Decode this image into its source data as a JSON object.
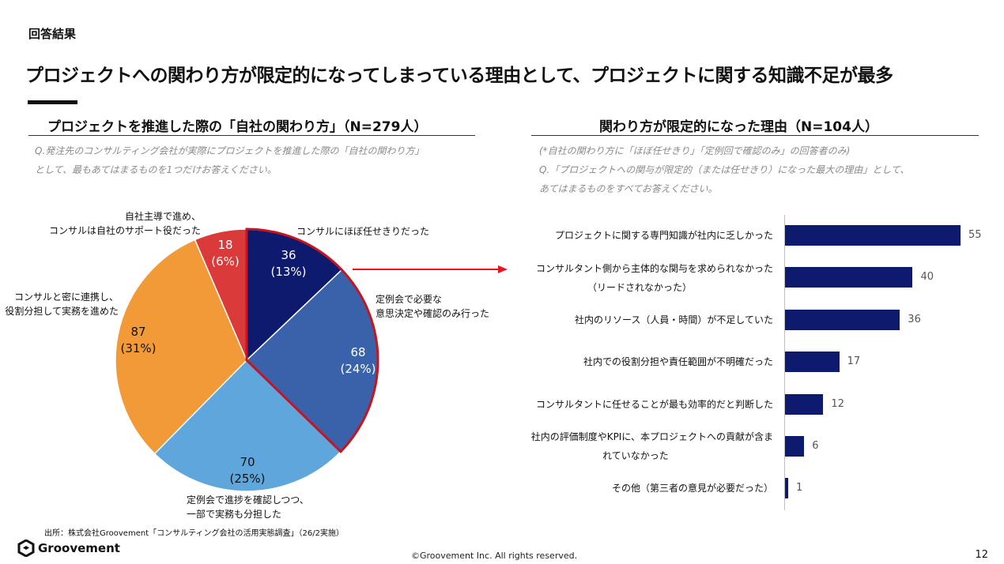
{
  "header": {
    "section": "回答結果",
    "headline": "プロジェクトへの関わり方が限定的になってしまっている理由として、プロジェクトに関する知識不足が最多"
  },
  "left": {
    "title": "プロジェクトを推進した際の「自社の関わり方」（N=279人）",
    "note": [
      "Q.発注先のコンサルティング会社が実際にプロジェクトを推進した際の「自社の関わり方」",
      "として、最もあてはまるものを1つだけお答えください。"
    ]
  },
  "right": {
    "title": "関わり方が限定的になった理由（N=104人）",
    "note": [
      "(*自社の関わり方に「ほぼ任せきり」「定例回で確認のみ」の回答者のみ)",
      "Q.「プロジェクトへの関与が限定的（または任せきり）になった最大の理由」として、",
      "あてはまるものをすべてお答えください。"
    ]
  },
  "chart_data": [
    {
      "type": "pie",
      "title": "プロジェクトを推進した際の「自社の関わり方」（N=279人）",
      "slices": [
        {
          "label": [
            "コンサルにほぼ任せきりだった"
          ],
          "value": 36,
          "pct": "(13%)",
          "color": "#0d1a6e"
        },
        {
          "label": [
            "定例会で必要な",
            "意思決定や確認のみ行った"
          ],
          "value": 68,
          "pct": "(24%)",
          "color": "#3a62ab"
        },
        {
          "label": [
            "定例会で進捗を確認しつつ、",
            "一部で実務も分担した"
          ],
          "value": 70,
          "pct": "(25%)",
          "color": "#5fa6dc"
        },
        {
          "label": [
            "コンサルと密に連携し、",
            "役割分担して実務を進めた"
          ],
          "value": 87,
          "pct": "(31%)",
          "color": "#f39a38"
        },
        {
          "label": [
            "自社主導で進め、",
            "コンサルは自社のサポート役だった"
          ],
          "value": 18,
          "pct": "(6%)",
          "color": "#da3a3a"
        }
      ]
    },
    {
      "type": "bar",
      "orientation": "horizontal",
      "title": "関わり方が限定的になった理由（N=104人）",
      "categories": [
        [
          "プロジェクトに関する専門知識が社内に乏しかった"
        ],
        [
          "コンサルタント側から主体的な関与を求められなかった",
          "（リードされなかった）"
        ],
        [
          "社内のリソース（人員・時間）が不足していた"
        ],
        [
          "社内での役割分担や責任範囲が不明確だった"
        ],
        [
          "コンサルタントに任せることが最も効率的だと判断した"
        ],
        [
          "社内の評価制度やKPIに、本プロジェクトへの貢献が含ま",
          "れていなかった"
        ],
        [
          "その他（第三者の意見が必要だった）"
        ]
      ],
      "values": [
        55,
        40,
        36,
        17,
        12,
        6,
        1
      ],
      "xlim": [
        0,
        60
      ],
      "color": "#0d1a6e"
    }
  ],
  "footer": {
    "source": "出所：株式会社Groovement「コンサルティング会社の活用実態調査」（26/2実施）",
    "copyright": "©Groovement Inc. All rights reserved.",
    "page": "12",
    "brand": "Groovement"
  }
}
